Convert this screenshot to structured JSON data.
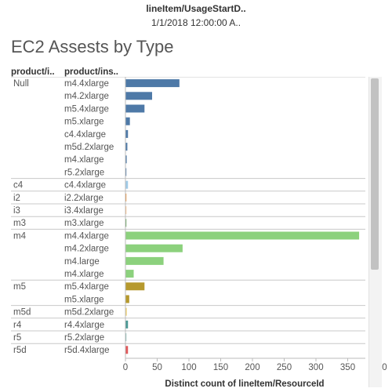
{
  "header": {
    "field_label": "lineItem/UsageStartD..",
    "field_value": "1/1/2018 12:00:00 A.."
  },
  "title": "EC2 Assests by Type",
  "column_headers": {
    "family": "product/i..",
    "instance": "product/ins.."
  },
  "chart_data": {
    "type": "bar",
    "orientation": "horizontal",
    "xlabel": "Distinct count of lineItem/ResourceId",
    "ylabel": "",
    "xlim": [
      0,
      410
    ],
    "xticks": [
      "0",
      "50",
      "100",
      "150",
      "200",
      "250",
      "300",
      "350",
      "400"
    ],
    "grid": false,
    "groups": [
      {
        "family": "Null",
        "color": "#4e79a7",
        "rows": [
          {
            "instance": "m4.4xlarge",
            "value": 85
          },
          {
            "instance": "m4.2xlarge",
            "value": 42
          },
          {
            "instance": "m5.4xlarge",
            "value": 30
          },
          {
            "instance": "m5.xlarge",
            "value": 7
          },
          {
            "instance": "c4.4xlarge",
            "value": 4
          },
          {
            "instance": "m5d.2xlarge",
            "value": 3
          },
          {
            "instance": "m4.xlarge",
            "value": 2
          },
          {
            "instance": "r5.2xlarge",
            "value": 1
          }
        ]
      },
      {
        "family": "c4",
        "color": "#a0cbe8",
        "rows": [
          {
            "instance": "c4.4xlarge",
            "value": 4
          }
        ]
      },
      {
        "family": "i2",
        "color": "#f28e2b",
        "rows": [
          {
            "instance": "i2.2xlarge",
            "value": 1
          }
        ]
      },
      {
        "family": "i3",
        "color": "#ffbe7d",
        "rows": [
          {
            "instance": "i3.4xlarge",
            "value": 1
          }
        ]
      },
      {
        "family": "m3",
        "color": "#59a14f",
        "rows": [
          {
            "instance": "m3.xlarge",
            "value": 1
          }
        ]
      },
      {
        "family": "m4",
        "color": "#8cd17d",
        "rows": [
          {
            "instance": "m4.4xlarge",
            "value": 368
          },
          {
            "instance": "m4.2xlarge",
            "value": 90
          },
          {
            "instance": "m4.large",
            "value": 60
          },
          {
            "instance": "m4.xlarge",
            "value": 13
          }
        ]
      },
      {
        "family": "m5",
        "color": "#b6992d",
        "rows": [
          {
            "instance": "m5.4xlarge",
            "value": 30
          },
          {
            "instance": "m5.xlarge",
            "value": 6
          }
        ]
      },
      {
        "family": "m5d",
        "color": "#f1ce63",
        "rows": [
          {
            "instance": "m5d.2xlarge",
            "value": 2
          }
        ]
      },
      {
        "family": "r4",
        "color": "#499894",
        "rows": [
          {
            "instance": "r4.4xlarge",
            "value": 4
          }
        ]
      },
      {
        "family": "r5",
        "color": "#86bcb6",
        "rows": [
          {
            "instance": "r5.2xlarge",
            "value": 1
          }
        ]
      },
      {
        "family": "r5d",
        "color": "#e15759",
        "rows": [
          {
            "instance": "r5d.4xlarge",
            "value": 4
          }
        ]
      }
    ]
  }
}
